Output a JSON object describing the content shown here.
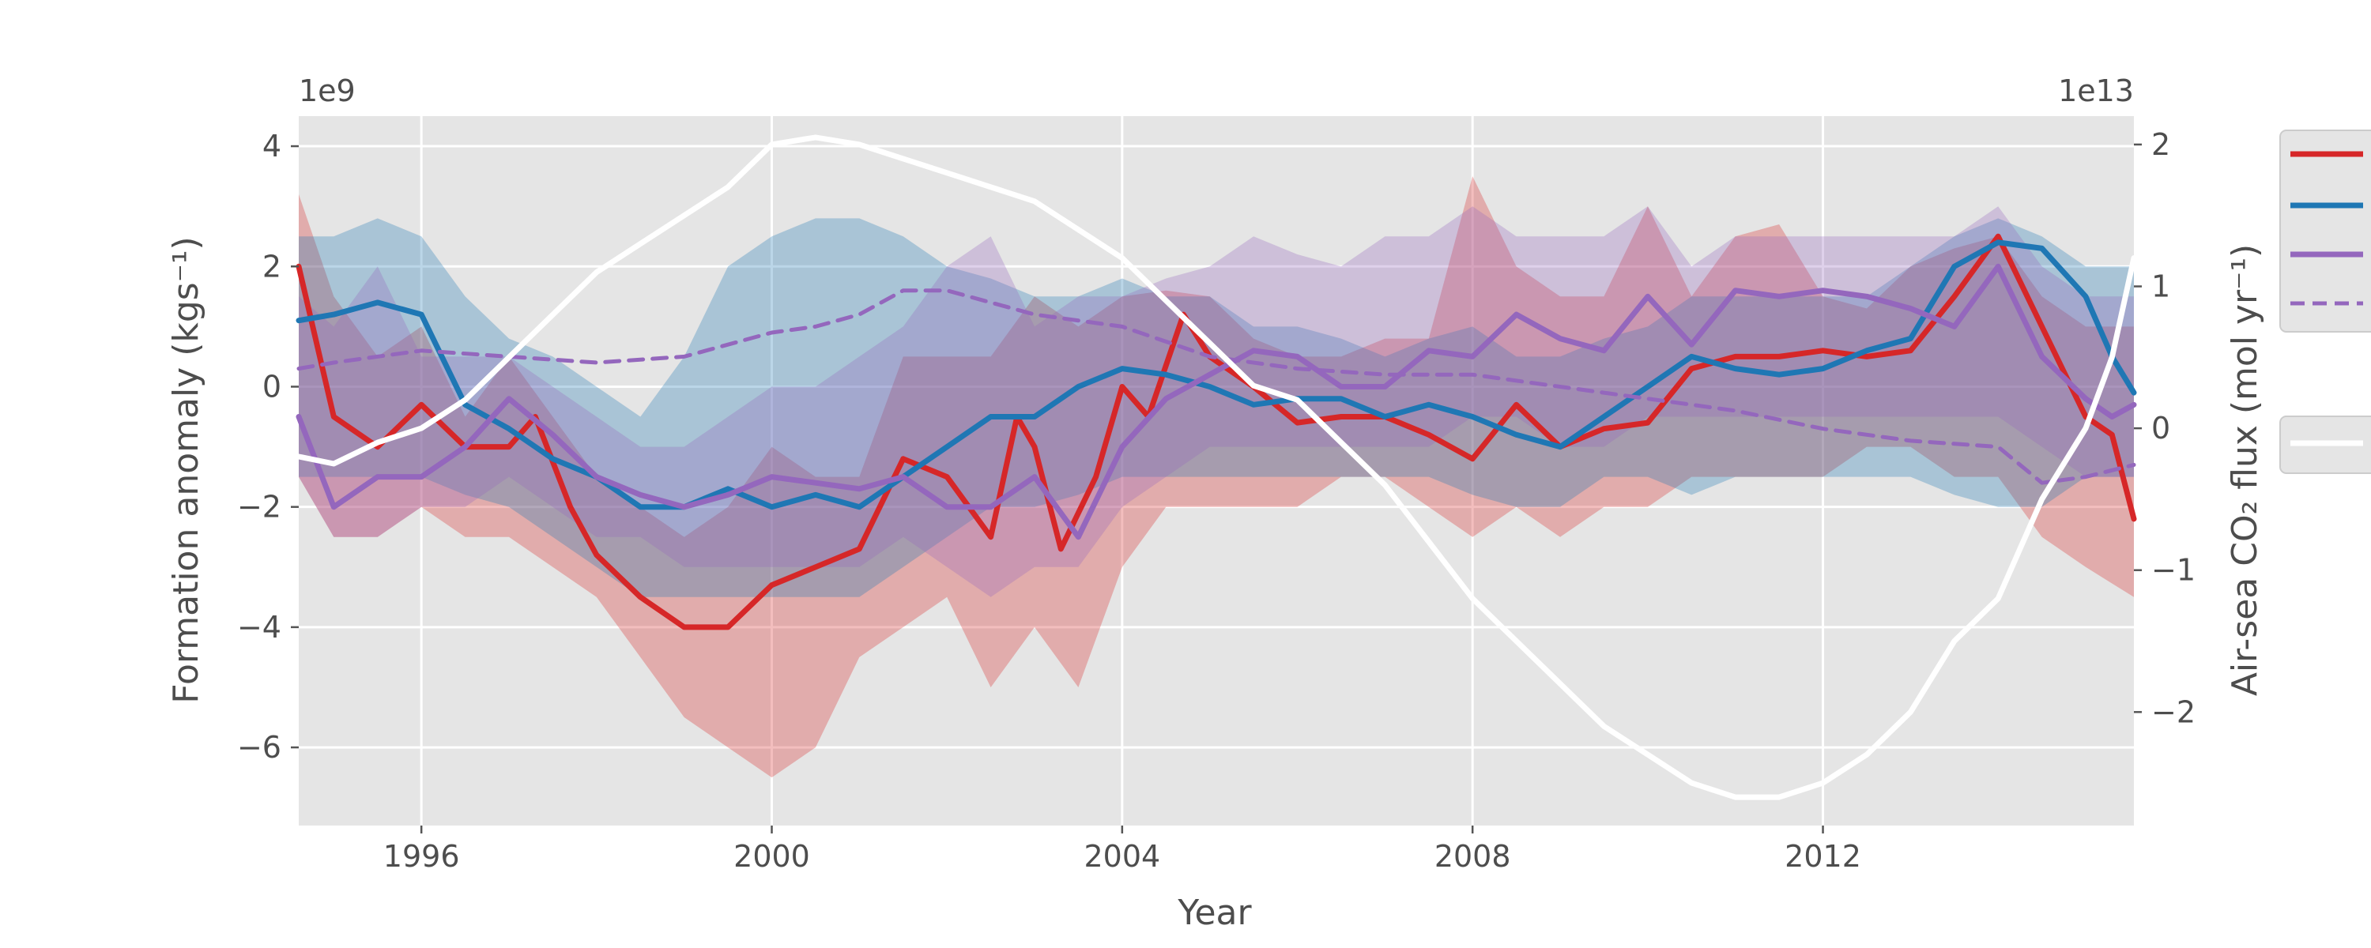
{
  "chart_data": {
    "type": "line",
    "xlabel": "Year",
    "ylabel_left": "Formation anomaly (kgs⁻¹)",
    "ylabel_right": "Air-sea CO₂ flux (mol yr⁻¹)",
    "left_multiplier": "1e9",
    "right_multiplier": "1e13",
    "xlim": [
      1994.6,
      2015.55
    ],
    "ylim_left": [
      -7.3,
      4.5
    ],
    "ylim_right": [
      -2.8,
      2.2
    ],
    "x_ticks": [
      1996,
      2000,
      2004,
      2008,
      2012
    ],
    "y_left_ticks": [
      4,
      2,
      0,
      -2,
      -4,
      -6
    ],
    "y_right_ticks": [
      2,
      1,
      0,
      -1,
      -2
    ],
    "y_right_tick_labels": [
      "2",
      "1",
      "0",
      "−1",
      "−2"
    ],
    "y_left_tick_labels": [
      "4",
      "2",
      "0",
      "−2",
      "−4",
      "−6"
    ],
    "grid": true,
    "colors": {
      "red": "#d62728",
      "blue": "#1f77b4",
      "purple": "#9467bd",
      "white": "#ffffff",
      "background": "#e5e5e5"
    },
    "legend_placement": "right (clipped)",
    "series": [
      {
        "color": "#d62728",
        "style": "solid",
        "axis": "left",
        "x": [
          1994.6,
          1995,
          1995.5,
          1996,
          1996.5,
          1997,
          1997.3,
          1997.7,
          1998,
          1998.5,
          1999,
          1999.5,
          2000,
          2000.5,
          2001,
          2001.5,
          2002,
          2002.5,
          2002.8,
          2003,
          2003.3,
          2003.7,
          2004,
          2004.3,
          2004.7,
          2005,
          2005.5,
          2006,
          2006.5,
          2007,
          2007.5,
          2008,
          2008.5,
          2009,
          2009.5,
          2010,
          2010.5,
          2011,
          2011.5,
          2012,
          2012.5,
          2013,
          2013.5,
          2014,
          2014.5,
          2015,
          2015.3,
          2015.55
        ],
        "y": [
          2.0,
          -0.5,
          -1.0,
          -0.3,
          -1.0,
          -1.0,
          -0.5,
          -2.0,
          -2.8,
          -3.5,
          -4.0,
          -4.0,
          -3.3,
          -3.0,
          -2.7,
          -1.2,
          -1.5,
          -2.5,
          -0.5,
          -1.0,
          -2.7,
          -1.5,
          0.0,
          -0.5,
          1.2,
          0.5,
          0.0,
          -0.6,
          -0.5,
          -0.5,
          -0.8,
          -1.2,
          -0.3,
          -1.0,
          -0.7,
          -0.6,
          0.3,
          0.5,
          0.5,
          0.6,
          0.5,
          0.6,
          1.5,
          2.5,
          1.0,
          -0.5,
          -0.8,
          -2.2
        ]
      },
      {
        "color": "#1f77b4",
        "style": "solid",
        "axis": "left",
        "x": [
          1994.6,
          1995,
          1995.5,
          1996,
          1996.5,
          1997,
          1997.5,
          1998,
          1998.5,
          1999,
          1999.5,
          2000,
          2000.5,
          2001,
          2001.5,
          2002,
          2002.5,
          2003,
          2003.5,
          2004,
          2004.5,
          2005,
          2005.5,
          2006,
          2006.5,
          2007,
          2007.5,
          2008,
          2008.5,
          2009,
          2009.5,
          2010,
          2010.5,
          2011,
          2011.5,
          2012,
          2012.5,
          2013,
          2013.5,
          2014,
          2014.5,
          2015,
          2015.3,
          2015.55
        ],
        "y": [
          1.1,
          1.2,
          1.4,
          1.2,
          -0.3,
          -0.7,
          -1.2,
          -1.5,
          -2.0,
          -2.0,
          -1.7,
          -2.0,
          -1.8,
          -2.0,
          -1.5,
          -1.0,
          -0.5,
          -0.5,
          0.0,
          0.3,
          0.2,
          0.0,
          -0.3,
          -0.2,
          -0.2,
          -0.5,
          -0.3,
          -0.5,
          -0.8,
          -1.0,
          -0.5,
          0.0,
          0.5,
          0.3,
          0.2,
          0.3,
          0.6,
          0.8,
          2.0,
          2.4,
          2.3,
          1.5,
          0.5,
          -0.1
        ]
      },
      {
        "color": "#9467bd",
        "style": "solid",
        "axis": "left",
        "x": [
          1994.6,
          1995,
          1995.5,
          1996,
          1996.5,
          1997,
          1997.5,
          1998,
          1998.5,
          1999,
          1999.5,
          2000,
          2000.5,
          2001,
          2001.5,
          2002,
          2002.5,
          2003,
          2003.5,
          2004,
          2004.5,
          2005,
          2005.5,
          2006,
          2006.5,
          2007,
          2007.5,
          2008,
          2008.5,
          2009,
          2009.5,
          2010,
          2010.5,
          2011,
          2011.5,
          2012,
          2012.5,
          2013,
          2013.5,
          2014,
          2014.5,
          2015,
          2015.3,
          2015.55
        ],
        "y": [
          -0.5,
          -2.0,
          -1.5,
          -1.5,
          -1.0,
          -0.2,
          -0.8,
          -1.5,
          -1.8,
          -2.0,
          -1.8,
          -1.5,
          -1.6,
          -1.7,
          -1.5,
          -2.0,
          -2.0,
          -1.5,
          -2.5,
          -1.0,
          -0.2,
          0.2,
          0.6,
          0.5,
          0.0,
          0.0,
          0.6,
          0.5,
          1.2,
          0.8,
          0.6,
          1.5,
          0.7,
          1.6,
          1.5,
          1.6,
          1.5,
          1.3,
          1.0,
          2.0,
          0.5,
          -0.2,
          -0.5,
          -0.3
        ]
      },
      {
        "color": "#9467bd",
        "style": "dashed",
        "axis": "left",
        "x": [
          1994.6,
          1995,
          1996,
          1997,
          1998,
          1999,
          2000,
          2000.5,
          2001,
          2001.5,
          2002,
          2003,
          2004,
          2005,
          2006,
          2007,
          2008,
          2009,
          2010,
          2011,
          2012,
          2013,
          2014,
          2014.5,
          2015,
          2015.55
        ],
        "y": [
          0.3,
          0.4,
          0.6,
          0.5,
          0.4,
          0.5,
          0.9,
          1.0,
          1.2,
          1.6,
          1.6,
          1.2,
          1.0,
          0.5,
          0.3,
          0.2,
          0.2,
          0.0,
          -0.2,
          -0.4,
          -0.7,
          -0.9,
          -1.0,
          -1.6,
          -1.5,
          -1.3
        ]
      },
      {
        "color": "#ffffff",
        "style": "solid",
        "axis": "right",
        "x": [
          1994.6,
          1995,
          1995.5,
          1996,
          1996.5,
          1997,
          1997.5,
          1998,
          1998.5,
          1999,
          1999.5,
          2000,
          2000.5,
          2001,
          2001.5,
          2002,
          2002.5,
          2003,
          2003.5,
          2004,
          2004.5,
          2005,
          2005.5,
          2006,
          2006.5,
          2007,
          2007.5,
          2008,
          2008.5,
          2009,
          2009.5,
          2010,
          2010.5,
          2011,
          2011.5,
          2012,
          2012.5,
          2013,
          2013.5,
          2014,
          2014.5,
          2015,
          2015.3,
          2015.55
        ],
        "y": [
          -0.2,
          -0.25,
          -0.1,
          0.0,
          0.2,
          0.5,
          0.8,
          1.1,
          1.3,
          1.5,
          1.7,
          2.0,
          2.05,
          2.0,
          1.9,
          1.8,
          1.7,
          1.6,
          1.4,
          1.2,
          0.9,
          0.6,
          0.3,
          0.2,
          -0.1,
          -0.4,
          -0.8,
          -1.2,
          -1.5,
          -1.8,
          -2.1,
          -2.3,
          -2.5,
          -2.6,
          -2.6,
          -2.5,
          -2.3,
          -2.0,
          -1.5,
          -1.2,
          -0.5,
          0.0,
          0.5,
          1.2
        ]
      }
    ],
    "bands": [
      {
        "color": "#d62728",
        "opacity": 0.3,
        "x": [
          1994.6,
          1995,
          1995.5,
          1996,
          1996.5,
          1997,
          1997.5,
          1998,
          1998.5,
          1999,
          1999.5,
          2000,
          2000.5,
          2001,
          2001.5,
          2002,
          2002.5,
          2003,
          2003.5,
          2004,
          2004.5,
          2005,
          2005.5,
          2006,
          2006.5,
          2007,
          2007.5,
          2008,
          2008.5,
          2009,
          2009.5,
          2010,
          2010.5,
          2011,
          2011.5,
          2012,
          2012.5,
          2013,
          2013.5,
          2014,
          2014.5,
          2015,
          2015.55
        ],
        "upper": [
          3.2,
          1.5,
          0.5,
          1.0,
          -0.5,
          0.5,
          -0.5,
          -1.5,
          -2.0,
          -2.5,
          -2.0,
          -1.0,
          -1.5,
          -1.5,
          0.5,
          0.5,
          0.5,
          1.5,
          1.0,
          1.5,
          1.6,
          1.5,
          0.8,
          0.5,
          0.5,
          0.8,
          0.8,
          3.5,
          2.0,
          1.5,
          1.5,
          3.0,
          1.5,
          2.5,
          2.7,
          1.5,
          1.3,
          2.0,
          2.3,
          2.5,
          1.5,
          1.0,
          1.0
        ],
        "lower": [
          -1.5,
          -2.5,
          -2.5,
          -2.0,
          -2.5,
          -2.5,
          -3.0,
          -3.5,
          -4.5,
          -5.5,
          -6.0,
          -6.5,
          -6.0,
          -4.5,
          -4.0,
          -3.5,
          -5.0,
          -4.0,
          -5.0,
          -3.0,
          -2.0,
          -2.0,
          -2.0,
          -2.0,
          -1.5,
          -1.5,
          -2.0,
          -2.5,
          -2.0,
          -2.5,
          -2.0,
          -2.0,
          -1.5,
          -1.5,
          -1.5,
          -1.5,
          -1.0,
          -1.0,
          -1.5,
          -1.5,
          -2.5,
          -3.0,
          -3.5
        ]
      },
      {
        "color": "#1f77b4",
        "opacity": 0.3,
        "x": [
          1994.6,
          1995,
          1995.5,
          1996,
          1996.5,
          1997,
          1997.5,
          1998,
          1998.5,
          1999,
          1999.5,
          2000,
          2000.5,
          2001,
          2001.5,
          2002,
          2002.5,
          2003,
          2003.5,
          2004,
          2004.5,
          2005,
          2005.5,
          2006,
          2006.5,
          2007,
          2007.5,
          2008,
          2008.5,
          2009,
          2009.5,
          2010,
          2010.5,
          2011,
          2011.5,
          2012,
          2012.5,
          2013,
          2013.5,
          2014,
          2014.5,
          2015,
          2015.55
        ],
        "upper": [
          2.5,
          2.5,
          2.8,
          2.5,
          1.5,
          0.8,
          0.5,
          0.0,
          -0.5,
          0.5,
          2.0,
          2.5,
          2.8,
          2.8,
          2.5,
          2.0,
          1.8,
          1.5,
          1.5,
          1.8,
          1.5,
          1.5,
          1.0,
          1.0,
          0.8,
          0.5,
          0.8,
          1.0,
          0.5,
          0.5,
          0.8,
          1.0,
          1.5,
          1.5,
          1.5,
          1.5,
          1.5,
          2.0,
          2.5,
          2.8,
          2.5,
          2.0,
          2.0
        ],
        "lower": [
          -1.5,
          -1.5,
          -1.5,
          -1.5,
          -1.8,
          -2.0,
          -2.5,
          -3.0,
          -3.5,
          -3.5,
          -3.5,
          -3.5,
          -3.5,
          -3.5,
          -3.0,
          -2.5,
          -2.0,
          -2.0,
          -1.8,
          -1.5,
          -1.5,
          -1.5,
          -1.5,
          -1.5,
          -1.5,
          -1.5,
          -1.5,
          -1.8,
          -2.0,
          -2.0,
          -1.5,
          -1.5,
          -1.8,
          -1.5,
          -1.5,
          -1.5,
          -1.5,
          -1.5,
          -1.8,
          -2.0,
          -2.0,
          -1.5,
          -1.5
        ]
      },
      {
        "color": "#9467bd",
        "opacity": 0.3,
        "x": [
          1994.6,
          1995,
          1995.5,
          1996,
          1996.5,
          1997,
          1997.5,
          1998,
          1998.5,
          1999,
          1999.5,
          2000,
          2000.5,
          2001,
          2001.5,
          2002,
          2002.5,
          2003,
          2003.5,
          2004,
          2004.5,
          2005,
          2005.5,
          2006,
          2006.5,
          2007,
          2007.5,
          2008,
          2008.5,
          2009,
          2009.5,
          2010,
          2010.5,
          2011,
          2011.5,
          2012,
          2012.5,
          2013,
          2013.5,
          2014,
          2014.5,
          2015,
          2015.55
        ],
        "upper": [
          1.5,
          1.0,
          2.0,
          0.5,
          0.5,
          0.5,
          0.0,
          -0.5,
          -1.0,
          -1.0,
          -0.5,
          0.0,
          0.0,
          0.5,
          1.0,
          2.0,
          2.5,
          1.0,
          1.5,
          1.5,
          1.8,
          2.0,
          2.5,
          2.2,
          2.0,
          2.5,
          2.5,
          3.0,
          2.5,
          2.5,
          2.5,
          3.0,
          2.0,
          2.5,
          2.5,
          2.5,
          2.5,
          2.5,
          2.5,
          3.0,
          2.0,
          1.5,
          1.5
        ],
        "lower": [
          -1.5,
          -2.5,
          -2.5,
          -2.0,
          -2.0,
          -1.5,
          -2.0,
          -2.5,
          -2.5,
          -3.0,
          -3.0,
          -3.0,
          -3.0,
          -3.0,
          -2.5,
          -3.0,
          -3.5,
          -3.0,
          -3.0,
          -2.0,
          -1.5,
          -1.0,
          -1.0,
          -1.0,
          -1.0,
          -1.0,
          -1.0,
          -0.5,
          -0.5,
          -1.0,
          -1.0,
          -0.5,
          -0.5,
          -0.5,
          -0.5,
          -0.5,
          -0.5,
          -0.5,
          -0.5,
          -0.5,
          -1.0,
          -1.5,
          -1.5
        ]
      }
    ]
  }
}
